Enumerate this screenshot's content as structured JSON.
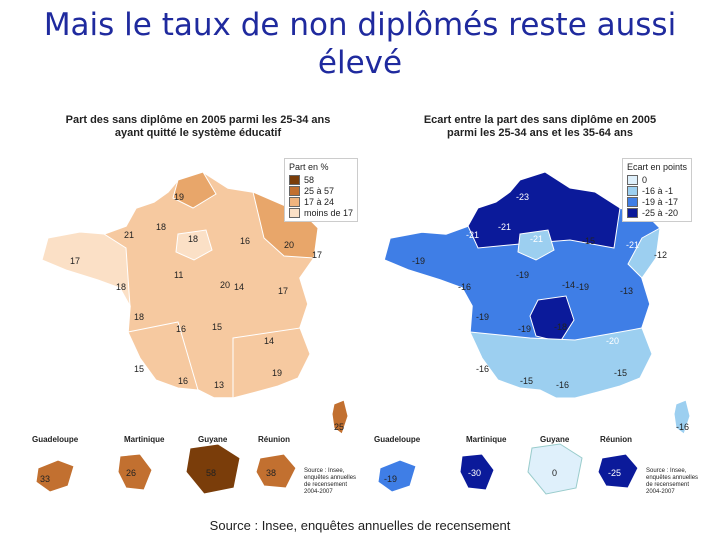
{
  "slide": {
    "title_line1": "Mais le taux de non diplômés reste aussi",
    "title_line2": "élevé",
    "footer": "Source : Insee, enquêtes annuelles de recensement"
  },
  "left_map": {
    "title_line1": "Part des sans diplôme en 2005 parmi les 25-34 ans",
    "title_line2": "ayant quitté le système éducatif",
    "legend_title": "Part en %",
    "legend": [
      {
        "label": "58",
        "color": "#7a3d0a"
      },
      {
        "label": "25 à 57",
        "color": "#c27030"
      },
      {
        "label": "17 à 24",
        "color": "#f0b47e"
      },
      {
        "label": "moins de 17",
        "color": "#fbe0c6"
      }
    ],
    "regions": [
      "19",
      "18",
      "21",
      "18",
      "16",
      "20",
      "17",
      "11",
      "17",
      "18",
      "14",
      "17",
      "18",
      "16",
      "15",
      "14",
      "15",
      "16",
      "13",
      "19",
      "20"
    ],
    "corsica": "25",
    "overseas_names": [
      "Guadeloupe",
      "Martinique",
      "Guyane",
      "Réunion"
    ],
    "overseas_values": [
      "33",
      "26",
      "58",
      "38"
    ],
    "source_lines": [
      "Source : Insee,",
      "enquêtes annuelles",
      "de recensement",
      "2004-2007"
    ]
  },
  "right_map": {
    "title_line1": "Ecart entre la part des sans diplôme en 2005",
    "title_line2": "parmi les 25-34 ans et les 35-64 ans",
    "legend_title": "Ecart en points",
    "legend": [
      {
        "label": "0",
        "color": "#dff0fb"
      },
      {
        "label": "-16 à -1",
        "color": "#9ccff0"
      },
      {
        "label": "-19 à -17",
        "color": "#3f7ee6"
      },
      {
        "label": "-25 à -20",
        "color": "#0b1a9a"
      }
    ],
    "regions": [
      "-23",
      "-21",
      "-21",
      "-21",
      "-15",
      "-21",
      "-19",
      "-19",
      "-12",
      "-16",
      "-19",
      "-13",
      "-19",
      "-19",
      "-18",
      "-20",
      "-16",
      "-15",
      "-16",
      "-15",
      "-14"
    ],
    "corsica": "-16",
    "overseas_names": [
      "Guadeloupe",
      "Martinique",
      "Guyane",
      "Réunion"
    ],
    "overseas_values": [
      "-19",
      "-30",
      "0",
      "-25"
    ],
    "source_lines": [
      "Source : Insee,",
      "enquêtes annuelles",
      "de recensement",
      "2004-2007"
    ]
  }
}
